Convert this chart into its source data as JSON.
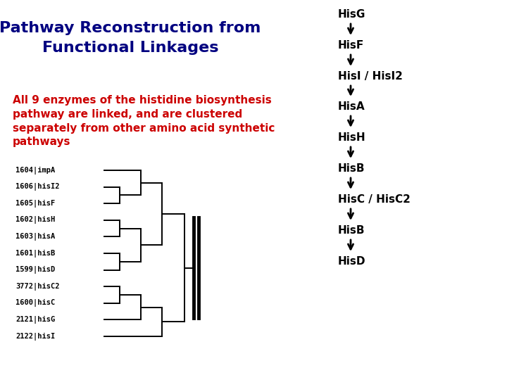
{
  "title_line1": "Pathway Reconstruction from",
  "title_line2": "Functional Linkages",
  "title_color": "#000080",
  "body_text": "All 9 enzymes of the histidine biosynthesis\npathway are linked, and are clustered\nseparately from other amino acid synthetic\npathways",
  "body_color": "#cc0000",
  "pathway_labels": [
    "HisG",
    "HisF",
    "HisI / HisI2",
    "HisA",
    "HisH",
    "HisB",
    "HisC / HisC2",
    "HisB",
    "HisD"
  ],
  "bg_color": "#ffffff",
  "arrow_color": "#000000",
  "label_color": "#000000",
  "dendrogram_labels": [
    "1604|impA",
    "1606|hisI2",
    "1605|hisF",
    "1602|hisH",
    "1603|hisA",
    "1601|hisB",
    "1599|hisD",
    "3772|hisC2",
    "1600|hisC",
    "2121|hisG",
    "2122|hisI"
  ],
  "dendrogram_font": "monospace",
  "dendrogram_fontsize": 7.5
}
